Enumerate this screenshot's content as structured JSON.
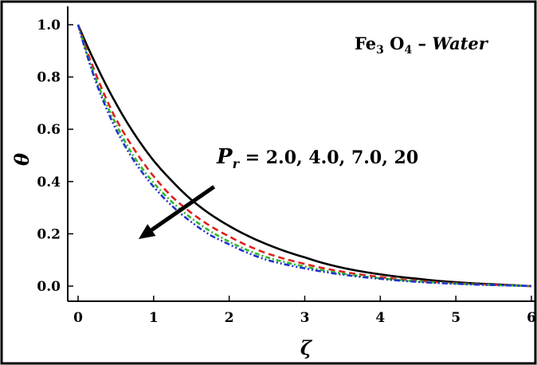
{
  "chart_data": {
    "type": "line",
    "title": "",
    "xlabel": "ζ",
    "ylabel": "θ",
    "xlim": [
      0,
      6
    ],
    "ylim": [
      0,
      1.0
    ],
    "x_ticks": [
      "0",
      "1",
      "2",
      "3",
      "4",
      "5",
      "6"
    ],
    "y_ticks": [
      "0.0",
      "0.2",
      "0.4",
      "0.6",
      "0.8",
      "1.0"
    ],
    "x": [
      0,
      0.25,
      0.5,
      0.75,
      1,
      1.25,
      1.5,
      1.75,
      2,
      2.5,
      3,
      3.5,
      4,
      4.5,
      5,
      5.5,
      6
    ],
    "series": [
      {
        "color": "#000000",
        "dash": "solid",
        "values": [
          1.0,
          0.84,
          0.7,
          0.58,
          0.48,
          0.4,
          0.33,
          0.275,
          0.23,
          0.16,
          0.11,
          0.07,
          0.045,
          0.028,
          0.015,
          0.007,
          0.0
        ]
      },
      {
        "color": "#e0201b",
        "dash": "dashed",
        "values": [
          1.0,
          0.8,
          0.64,
          0.52,
          0.42,
          0.34,
          0.28,
          0.23,
          0.19,
          0.125,
          0.085,
          0.055,
          0.035,
          0.02,
          0.011,
          0.005,
          0.0
        ]
      },
      {
        "color": "#2db82d",
        "dash": "dotdash",
        "values": [
          1.0,
          0.78,
          0.62,
          0.49,
          0.395,
          0.32,
          0.26,
          0.21,
          0.17,
          0.11,
          0.075,
          0.048,
          0.03,
          0.018,
          0.01,
          0.004,
          0.0
        ]
      },
      {
        "color": "#2233cc",
        "dash": "dashdot",
        "values": [
          1.0,
          0.77,
          0.6,
          0.475,
          0.38,
          0.305,
          0.245,
          0.195,
          0.16,
          0.1,
          0.068,
          0.044,
          0.028,
          0.016,
          0.009,
          0.004,
          0.0
        ]
      }
    ],
    "annotations": {
      "material_main": "Fe",
      "material_sub1": "3",
      "material_mid": " O",
      "material_sub2": "4",
      "material_dash": " – ",
      "material_fluid": "Water",
      "param_main": "P",
      "param_sub": "r",
      "param_values": " = 2.0, 4.0, 7.0, 20"
    },
    "arrow": {
      "from": [
        1.8,
        0.38
      ],
      "to": [
        0.8,
        0.18
      ]
    },
    "grid": false,
    "legend": "none"
  }
}
